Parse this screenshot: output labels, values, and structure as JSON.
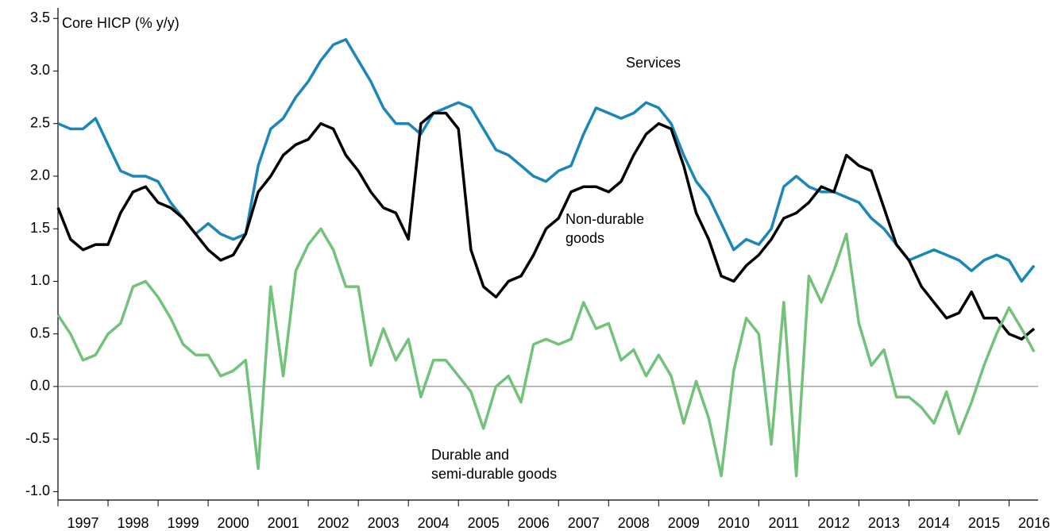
{
  "chart_data": {
    "type": "line",
    "ylabel": "Core HICP (% y/y)",
    "x": [
      1997,
      1997.25,
      1997.5,
      1997.75,
      1998,
      1998.25,
      1998.5,
      1998.75,
      1999,
      1999.25,
      1999.5,
      1999.75,
      2000,
      2000.25,
      2000.5,
      2000.75,
      2001,
      2001.25,
      2001.5,
      2001.75,
      2002,
      2002.25,
      2002.5,
      2002.75,
      2003,
      2003.25,
      2003.5,
      2003.75,
      2004,
      2004.25,
      2004.5,
      2004.75,
      2005,
      2005.25,
      2005.5,
      2005.75,
      2006,
      2006.25,
      2006.5,
      2006.75,
      2007,
      2007.25,
      2007.5,
      2007.75,
      2008,
      2008.25,
      2008.5,
      2008.75,
      2009,
      2009.25,
      2009.5,
      2009.75,
      2010,
      2010.25,
      2010.5,
      2010.75,
      2011,
      2011.25,
      2011.5,
      2011.75,
      2012,
      2012.25,
      2012.5,
      2012.75,
      2013,
      2013.25,
      2013.5,
      2013.75,
      2014,
      2014.25,
      2014.5,
      2014.75,
      2015,
      2015.25,
      2015.5,
      2015.75,
      2016,
      2016.25,
      2016.5
    ],
    "series": [
      {
        "name": [
          "Services"
        ],
        "color": "#1b86b9",
        "values": [
          2.5,
          2.45,
          2.45,
          2.55,
          2.3,
          2.05,
          2.0,
          2.0,
          1.95,
          1.75,
          1.6,
          1.45,
          1.55,
          1.45,
          1.4,
          1.45,
          2.1,
          2.45,
          2.55,
          2.75,
          2.9,
          3.1,
          3.25,
          3.3,
          3.1,
          2.9,
          2.65,
          2.5,
          2.5,
          2.4,
          2.6,
          2.65,
          2.7,
          2.65,
          2.45,
          2.25,
          2.2,
          2.1,
          2.0,
          1.95,
          2.05,
          2.1,
          2.4,
          2.65,
          2.6,
          2.55,
          2.6,
          2.7,
          2.65,
          2.5,
          2.2,
          1.95,
          1.8,
          1.55,
          1.3,
          1.4,
          1.35,
          1.5,
          1.9,
          2.0,
          1.9,
          1.85,
          1.85,
          1.8,
          1.75,
          1.6,
          1.5,
          1.35,
          1.2,
          1.25,
          1.3,
          1.25,
          1.2,
          1.1,
          1.2,
          1.25,
          1.2,
          1.0,
          1.15
        ]
      },
      {
        "name": [
          "Non-durable",
          "goods"
        ],
        "color": "#000000",
        "values": [
          1.7,
          1.4,
          1.3,
          1.35,
          1.35,
          1.65,
          1.85,
          1.9,
          1.75,
          1.7,
          1.6,
          1.45,
          1.3,
          1.2,
          1.25,
          1.45,
          1.85,
          2.0,
          2.2,
          2.3,
          2.35,
          2.5,
          2.45,
          2.2,
          2.05,
          1.85,
          1.7,
          1.65,
          1.4,
          2.5,
          2.6,
          2.6,
          2.45,
          1.3,
          0.95,
          0.85,
          1.0,
          1.05,
          1.25,
          1.5,
          1.6,
          1.85,
          1.9,
          1.9,
          1.85,
          1.95,
          2.2,
          2.4,
          2.5,
          2.45,
          2.1,
          1.65,
          1.4,
          1.05,
          1.0,
          1.15,
          1.25,
          1.4,
          1.6,
          1.65,
          1.75,
          1.9,
          1.85,
          2.2,
          2.1,
          2.05,
          1.7,
          1.35,
          1.2,
          0.95,
          0.8,
          0.65,
          0.7,
          0.9,
          0.65,
          0.65,
          0.5,
          0.45,
          0.55
        ]
      },
      {
        "name": [
          "Durable and",
          "semi-durable goods"
        ],
        "color": "#72c27a",
        "values": [
          0.68,
          0.5,
          0.25,
          0.3,
          0.5,
          0.6,
          0.95,
          1.0,
          0.85,
          0.65,
          0.4,
          0.3,
          0.3,
          0.1,
          0.15,
          0.25,
          -0.78,
          0.95,
          0.1,
          1.1,
          1.35,
          1.5,
          1.3,
          0.95,
          0.95,
          0.2,
          0.55,
          0.25,
          0.45,
          -0.1,
          0.25,
          0.25,
          0.1,
          -0.05,
          -0.4,
          0.0,
          0.1,
          -0.15,
          0.4,
          0.45,
          0.4,
          0.45,
          0.8,
          0.55,
          0.6,
          0.25,
          0.35,
          0.1,
          0.3,
          0.1,
          -0.35,
          0.05,
          -0.3,
          -0.85,
          0.15,
          0.65,
          0.5,
          -0.55,
          0.8,
          -0.85,
          1.05,
          0.8,
          1.1,
          1.45,
          0.6,
          0.2,
          0.35,
          -0.1,
          -0.1,
          -0.2,
          -0.35,
          -0.05,
          -0.45,
          -0.15,
          0.2,
          0.5,
          0.75,
          0.55,
          0.33
        ]
      }
    ],
    "xlim": [
      1997,
      2016.58
    ],
    "xticks": [
      1997,
      1998,
      1999,
      2000,
      2001,
      2002,
      2003,
      2004,
      2005,
      2006,
      2007,
      2008,
      2009,
      2010,
      2011,
      2012,
      2013,
      2014,
      2015,
      2016
    ],
    "ylim": [
      -1.08,
      3.6
    ],
    "yticks": [
      {
        "value": -1,
        "label": "-1.0"
      },
      -0.5,
      {
        "value": 0,
        "label": "0.0"
      },
      0.5,
      {
        "value": 1,
        "label": "1.0"
      },
      1.5,
      {
        "value": 2,
        "label": "2.0"
      },
      2.5,
      {
        "value": 3,
        "label": "3.0"
      },
      3.5
    ],
    "zero_line": true,
    "grid": false
  }
}
